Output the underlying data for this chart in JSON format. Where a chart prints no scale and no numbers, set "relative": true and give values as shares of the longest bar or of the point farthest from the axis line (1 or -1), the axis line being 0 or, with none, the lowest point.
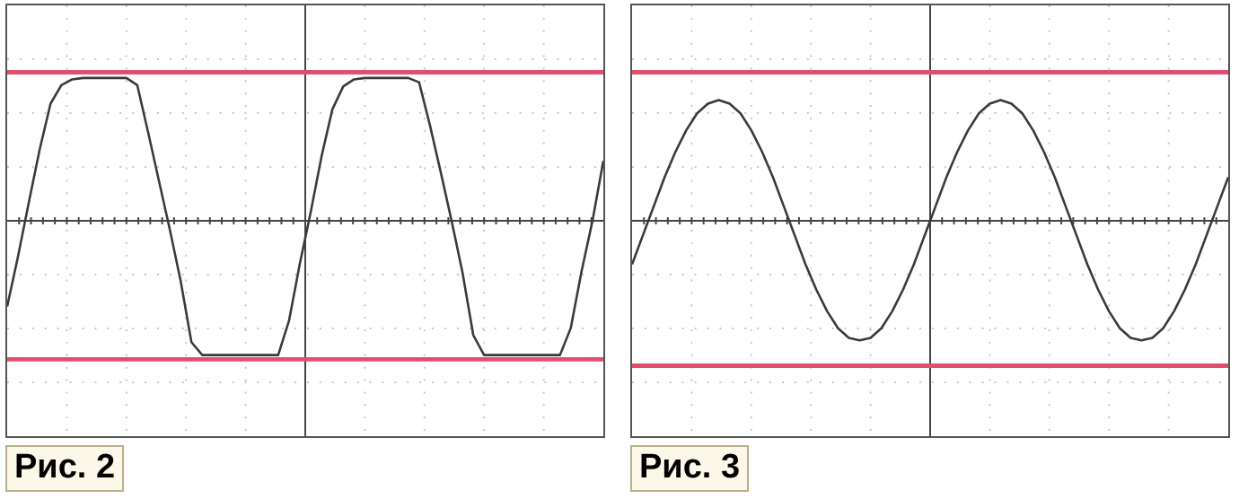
{
  "chart_data": [
    {
      "type": "line",
      "title": "Рис. 2",
      "relative": true,
      "grid": true,
      "legend": false,
      "marker": "none",
      "line_style": "solid",
      "categories": [
        null,
        null,
        null,
        null,
        null,
        null,
        null,
        null,
        null,
        null,
        null,
        null,
        null,
        null,
        null,
        null,
        null,
        null,
        null,
        null,
        null,
        null,
        null,
        null,
        null,
        null,
        null,
        null,
        null,
        null,
        null,
        null,
        null,
        null,
        null,
        null,
        null,
        null,
        null,
        null,
        null,
        null,
        null,
        null,
        null,
        null,
        null,
        null,
        null,
        null,
        null,
        null,
        null,
        null,
        null,
        null
      ],
      "series": [
        {
          "color": "#3a3a3a",
          "values": [
            -0.6,
            -0.25,
            0.13,
            0.5,
            0.82,
            0.95,
            0.99,
            1,
            1,
            1,
            1,
            1,
            0.95,
            0.62,
            0.28,
            -0.06,
            -0.42,
            -0.85,
            -0.94,
            -0.94,
            -0.94,
            -0.94,
            -0.94,
            -0.94,
            -0.94,
            -0.94,
            -0.7,
            -0.3,
            0.06,
            0.45,
            0.78,
            0.94,
            0.99,
            1,
            1,
            1,
            1,
            1,
            0.97,
            0.67,
            0.34,
            0,
            -0.36,
            -0.8,
            -0.94,
            -0.94,
            -0.94,
            -0.94,
            -0.94,
            -0.94,
            -0.94,
            -0.94,
            -0.75,
            -0.35,
            0,
            0.42
          ]
        }
      ],
      "ref_lines": [
        {
          "axis": "y",
          "value": 1.04,
          "color": "#e0506e"
        },
        {
          "axis": "y",
          "value": -0.97,
          "color": "#e0506e"
        }
      ]
    },
    {
      "type": "line",
      "title": "Рис. 3",
      "relative": true,
      "grid": true,
      "legend": false,
      "marker": "none",
      "line_style": "solid",
      "categories": [
        null,
        null,
        null,
        null,
        null,
        null,
        null,
        null,
        null,
        null,
        null,
        null,
        null,
        null,
        null,
        null,
        null,
        null,
        null,
        null,
        null,
        null,
        null,
        null,
        null,
        null,
        null,
        null,
        null,
        null,
        null,
        null,
        null,
        null,
        null,
        null,
        null,
        null,
        null,
        null,
        null,
        null,
        null,
        null,
        null,
        null,
        null,
        null,
        null,
        null,
        null,
        null,
        null,
        null,
        null,
        null
      ],
      "series": [
        {
          "color": "#3a3a3a",
          "values": [
            -0.36,
            -0.12,
            0.12,
            0.36,
            0.57,
            0.75,
            0.89,
            0.97,
            1,
            0.97,
            0.89,
            0.75,
            0.57,
            0.36,
            0.12,
            -0.12,
            -0.36,
            -0.57,
            -0.75,
            -0.89,
            -0.97,
            -0.99,
            -0.97,
            -0.89,
            -0.75,
            -0.57,
            -0.36,
            -0.12,
            0.12,
            0.36,
            0.57,
            0.75,
            0.89,
            0.97,
            1,
            0.97,
            0.89,
            0.75,
            0.57,
            0.36,
            0.12,
            -0.12,
            -0.36,
            -0.57,
            -0.75,
            -0.89,
            -0.97,
            -0.99,
            -0.97,
            -0.89,
            -0.75,
            -0.57,
            -0.36,
            -0.12,
            0.12,
            0.36
          ]
        }
      ],
      "ref_lines": [
        {
          "axis": "y",
          "value": 1.23,
          "color": "#e0506e"
        },
        {
          "axis": "y",
          "value": -1.2,
          "color": "#e0506e"
        }
      ]
    }
  ]
}
